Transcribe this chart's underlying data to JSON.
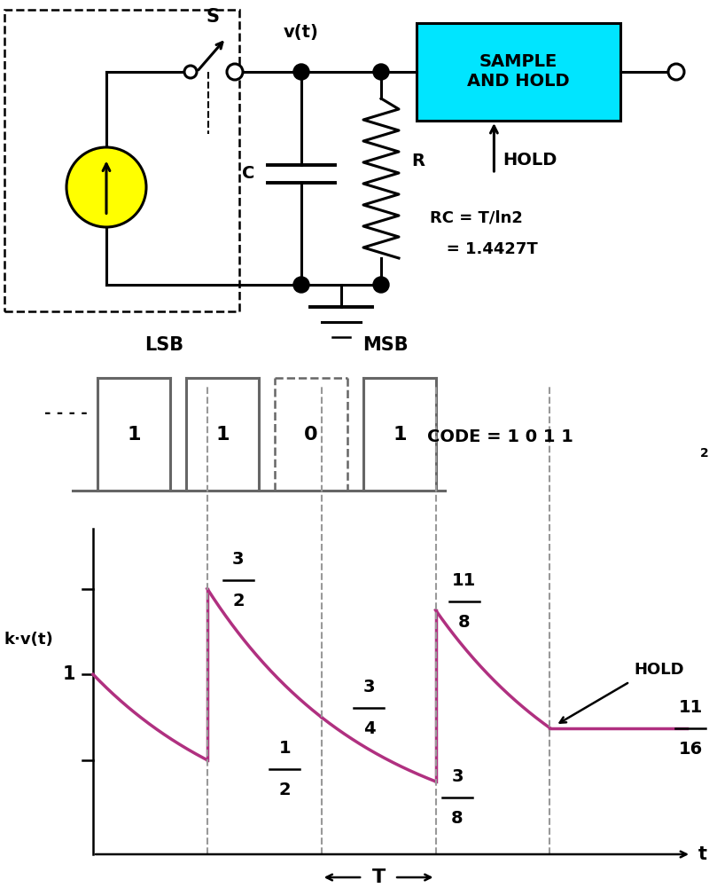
{
  "bg_color": "#ffffff",
  "circuit_color": "#000000",
  "sample_hold_box_color": "#00e5ff",
  "waveform_color": "#b03080",
  "pulse_color": "#666666",
  "dashed_line_color": "#999999",
  "ylabel_waveform": "k·v(t)",
  "xlabel_waveform": "t",
  "rc_text1": "RC = T/ln2",
  "rc_text2": "   = 1.4427T",
  "lsb_label": "LSB",
  "msb_label": "MSB",
  "hold_label": "HOLD",
  "s_label": "S",
  "c_label": "C",
  "r_label": "R",
  "vt_label": "v(t)",
  "sample_hold_text": "SAMPLE\nAND HOLD",
  "T_period": 1.0,
  "fig_width": 8.0,
  "fig_height": 10.01
}
